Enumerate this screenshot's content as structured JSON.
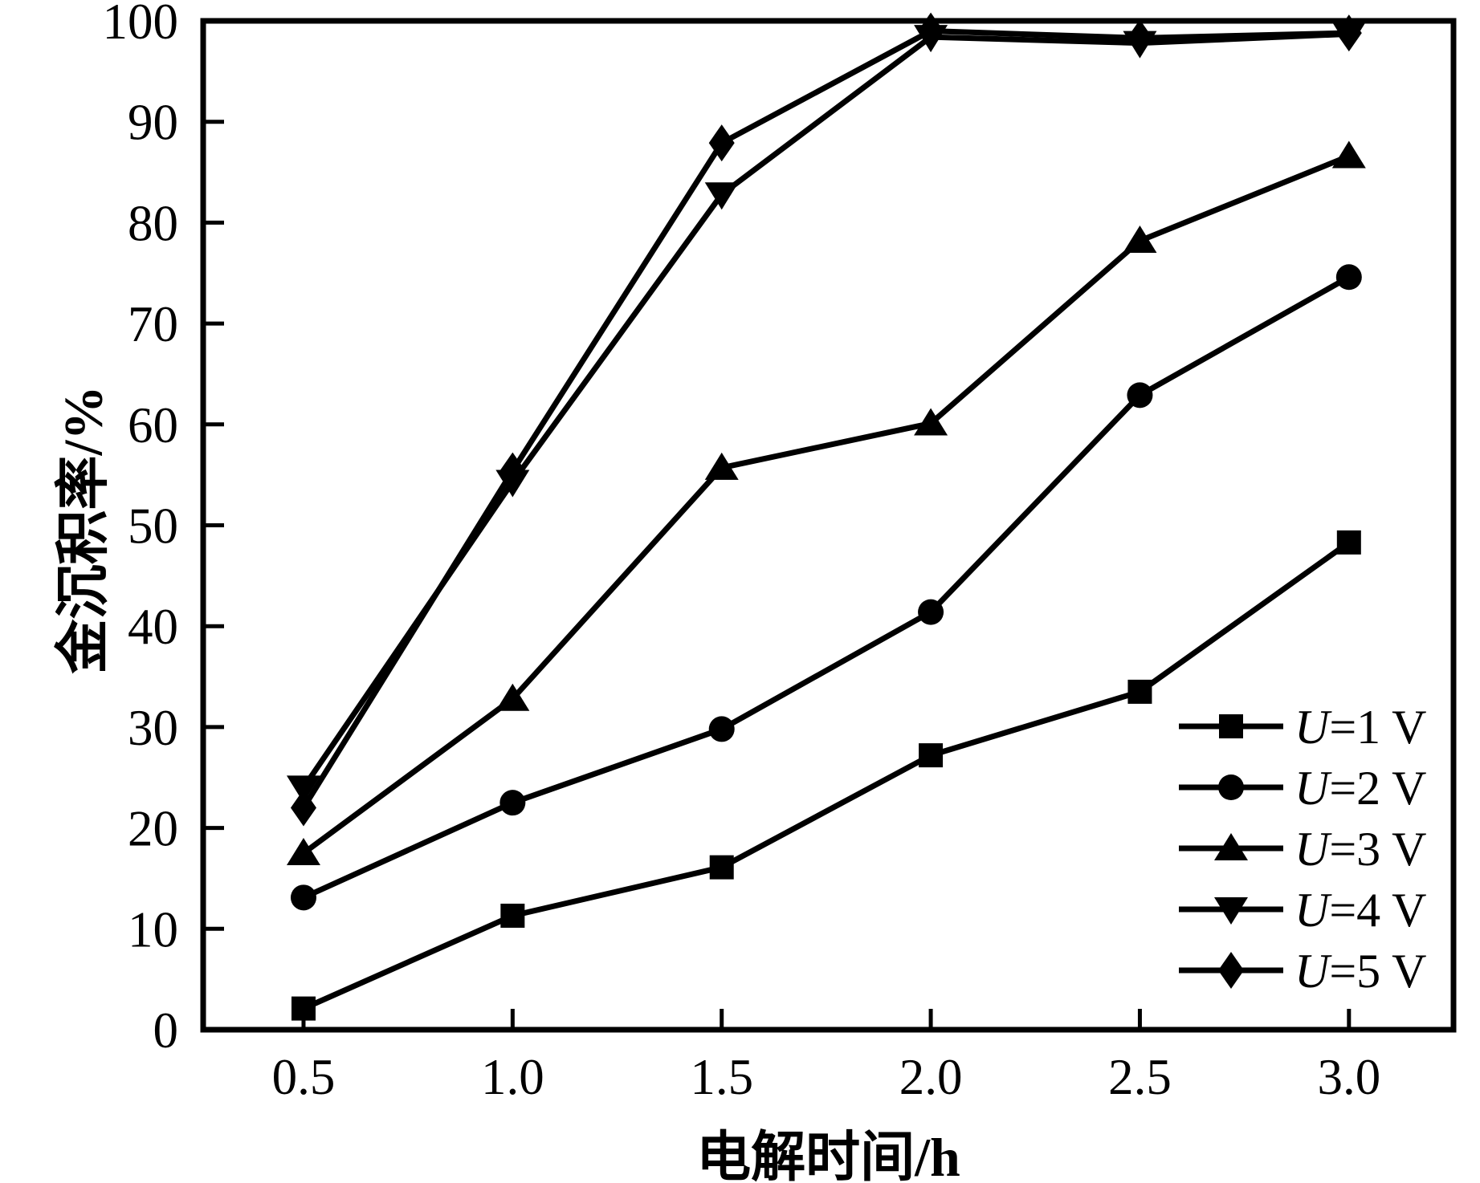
{
  "figure": {
    "background_color": "#ffffff",
    "ink_color": "#000000"
  },
  "chart_data": {
    "type": "line",
    "title": "",
    "xlabel": "电解时间/h",
    "ylabel": "金沉积率/%",
    "x": [
      0.5,
      1.0,
      1.5,
      2.0,
      2.5,
      3.0
    ],
    "x_tick_labels": [
      "0.5",
      "1.0",
      "1.5",
      "2.0",
      "2.5",
      "3.0"
    ],
    "y_ticks": [
      0,
      10,
      20,
      30,
      40,
      50,
      60,
      70,
      80,
      90,
      100
    ],
    "y_tick_labels": [
      "0",
      "10",
      "20",
      "30",
      "40",
      "50",
      "60",
      "70",
      "80",
      "90",
      "100"
    ],
    "xlim": [
      0.26,
      3.25
    ],
    "ylim": [
      0,
      100
    ],
    "grid": false,
    "legend_position": "inside-bottom-right",
    "series": [
      {
        "name": "U=1 V",
        "marker": "square",
        "line_color": "#000000",
        "values": [
          2.1,
          11.3,
          16.1,
          27.2,
          33.5,
          48.3
        ]
      },
      {
        "name": "U=2 V",
        "marker": "circle",
        "line_color": "#000000",
        "values": [
          13.1,
          22.5,
          29.8,
          41.4,
          62.9,
          74.6
        ]
      },
      {
        "name": "U=3 V",
        "marker": "triangle-up",
        "line_color": "#000000",
        "values": [
          17.5,
          32.8,
          55.7,
          60.1,
          78.2,
          86.6
        ]
      },
      {
        "name": "U=4 V",
        "marker": "triangle-down",
        "line_color": "#000000",
        "values": [
          24.0,
          54.3,
          82.8,
          98.4,
          97.8,
          98.7
        ]
      },
      {
        "name": "U=5 V",
        "marker": "diamond",
        "line_color": "#000000",
        "values": [
          22.0,
          55.4,
          87.9,
          99.0,
          98.3,
          98.8
        ]
      }
    ]
  }
}
